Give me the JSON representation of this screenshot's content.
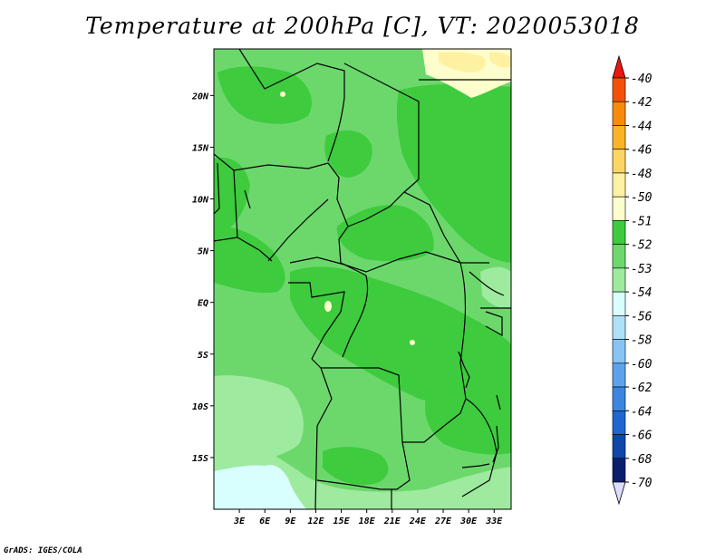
{
  "title": "Temperature at 200hPa [C], VT: 2020053018",
  "credit": "GrADS: IGES/COLA",
  "map": {
    "lon_range": [
      0,
      35
    ],
    "lat_range": [
      -20,
      24.5
    ],
    "lat_ticks": [
      {
        "value": 20,
        "label": "20N"
      },
      {
        "value": 15,
        "label": "15N"
      },
      {
        "value": 10,
        "label": "10N"
      },
      {
        "value": 5,
        "label": "5N"
      },
      {
        "value": 0,
        "label": "EQ"
      },
      {
        "value": -5,
        "label": "5S"
      },
      {
        "value": -10,
        "label": "10S"
      },
      {
        "value": -15,
        "label": "15S"
      }
    ],
    "lon_ticks": [
      {
        "value": 3,
        "label": "3E"
      },
      {
        "value": 6,
        "label": "6E"
      },
      {
        "value": 9,
        "label": "9E"
      },
      {
        "value": 12,
        "label": "12E"
      },
      {
        "value": 15,
        "label": "15E"
      },
      {
        "value": 18,
        "label": "18E"
      },
      {
        "value": 21,
        "label": "21E"
      },
      {
        "value": 24,
        "label": "24E"
      },
      {
        "value": 27,
        "label": "27E"
      },
      {
        "value": 30,
        "label": "30E"
      },
      {
        "value": 33,
        "label": "33E"
      }
    ]
  },
  "colorbar": {
    "labels": [
      "-40",
      "-42",
      "-44",
      "-46",
      "-48",
      "-50",
      "-51",
      "-52",
      "-53",
      "-54",
      "-56",
      "-58",
      "-60",
      "-62",
      "-64",
      "-66",
      "-68",
      "-70"
    ],
    "colors": [
      "#e8190f",
      "#f4500a",
      "#f98a0a",
      "#fbb425",
      "#fcd464",
      "#fef2a2",
      "#fefecc",
      "#3ecb3e",
      "#6cd86c",
      "#9eea9e",
      "#d8fefe",
      "#aee1f8",
      "#86c4f4",
      "#5ba4ec",
      "#3b86e0",
      "#1f66d0",
      "#0f46aa",
      "#0a1e6e",
      "#dcdcfe"
    ]
  },
  "colors": {
    "band_m53": "#6cd86c",
    "band_m52": "#3ecb3e",
    "band_m54": "#9eea9e",
    "band_m56": "#d8fefe",
    "band_m51": "#fefecc",
    "band_m50": "#fef2a2"
  }
}
